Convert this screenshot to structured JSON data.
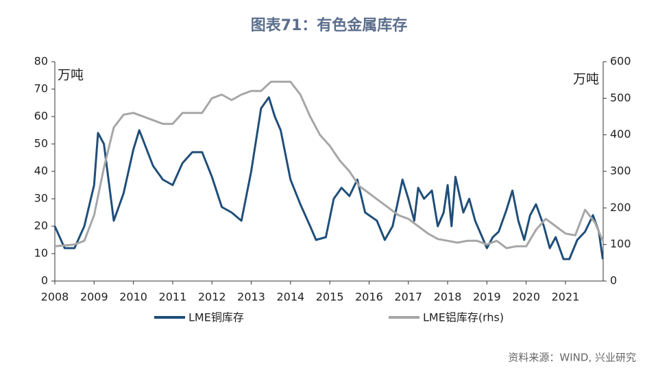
{
  "chart_data": {
    "type": "line",
    "title": "图表71：有色金属库存",
    "ylabel": "万吨",
    "y2label": "万吨",
    "source": "资料来源：WIND, 兴业研究",
    "xlim": [
      2008,
      2021.96
    ],
    "xticks": [
      2008,
      2009,
      2010,
      2011,
      2012,
      2013,
      2014,
      2015,
      2016,
      2017,
      2018,
      2019,
      2020,
      2021
    ],
    "ylim": [
      0,
      80
    ],
    "yticks": [
      0,
      10,
      20,
      30,
      40,
      50,
      60,
      70,
      80
    ],
    "y2lim": [
      0,
      600
    ],
    "y2ticks": [
      0,
      100,
      200,
      300,
      400,
      500,
      600
    ],
    "series": [
      {
        "name": "LME铜库存",
        "color": "#1f4e79",
        "x": [
          2008.0,
          2008.25,
          2008.5,
          2008.75,
          2009.0,
          2009.1,
          2009.25,
          2009.5,
          2009.75,
          2010.0,
          2010.15,
          2010.5,
          2010.75,
          2011.0,
          2011.25,
          2011.5,
          2011.75,
          2012.0,
          2012.25,
          2012.5,
          2012.75,
          2013.0,
          2013.25,
          2013.45,
          2013.6,
          2013.75,
          2014.0,
          2014.25,
          2014.5,
          2014.65,
          2014.9,
          2015.1,
          2015.3,
          2015.5,
          2015.7,
          2015.9,
          2016.2,
          2016.4,
          2016.6,
          2016.75,
          2016.85,
          2017.0,
          2017.15,
          2017.25,
          2017.4,
          2017.6,
          2017.75,
          2017.9,
          2018.0,
          2018.1,
          2018.2,
          2018.4,
          2018.55,
          2018.7,
          2018.85,
          2019.0,
          2019.15,
          2019.3,
          2019.5,
          2019.65,
          2019.8,
          2019.95,
          2020.1,
          2020.25,
          2020.45,
          2020.6,
          2020.75,
          2020.95,
          2021.1,
          2021.3,
          2021.5,
          2021.7,
          2021.85,
          2021.95
        ],
        "values": [
          20,
          12,
          12,
          20,
          35,
          54,
          50,
          22,
          32,
          48,
          55,
          42,
          37,
          35,
          43,
          47,
          47,
          38,
          27,
          25,
          22,
          40,
          63,
          67,
          60,
          55,
          37,
          28,
          20,
          15,
          16,
          30,
          34,
          31,
          37,
          25,
          22,
          15,
          20,
          30,
          37,
          30,
          22,
          34,
          30,
          33,
          20,
          25,
          35,
          20,
          38,
          25,
          30,
          22,
          17,
          12,
          16,
          18,
          26,
          33,
          22,
          15,
          24,
          28,
          20,
          12,
          16,
          8,
          8,
          15,
          18,
          24,
          18,
          8
        ]
      },
      {
        "name": "LME铝库存(rhs)",
        "color": "#a6a6a6",
        "axis": "y2",
        "x": [
          2008.0,
          2008.5,
          2008.75,
          2009.0,
          2009.25,
          2009.5,
          2009.75,
          2010.0,
          2010.5,
          2010.75,
          2011.0,
          2011.25,
          2011.5,
          2011.75,
          2012.0,
          2012.25,
          2012.5,
          2012.75,
          2013.0,
          2013.25,
          2013.5,
          2013.75,
          2014.0,
          2014.25,
          2014.5,
          2014.75,
          2015.0,
          2015.25,
          2015.5,
          2015.75,
          2016.0,
          2016.25,
          2016.5,
          2016.75,
          2017.0,
          2017.25,
          2017.5,
          2017.75,
          2018.0,
          2018.25,
          2018.5,
          2018.75,
          2019.0,
          2019.25,
          2019.5,
          2019.75,
          2020.0,
          2020.25,
          2020.5,
          2020.75,
          2021.0,
          2021.25,
          2021.5,
          2021.75,
          2021.95
        ],
        "values": [
          95,
          100,
          110,
          180,
          310,
          420,
          455,
          460,
          440,
          430,
          430,
          460,
          460,
          460,
          500,
          510,
          495,
          510,
          520,
          520,
          545,
          545,
          545,
          510,
          450,
          400,
          370,
          330,
          300,
          260,
          240,
          220,
          200,
          180,
          170,
          150,
          130,
          115,
          110,
          105,
          110,
          110,
          100,
          110,
          90,
          95,
          95,
          140,
          170,
          150,
          130,
          125,
          195,
          160,
          110
        ]
      }
    ]
  }
}
